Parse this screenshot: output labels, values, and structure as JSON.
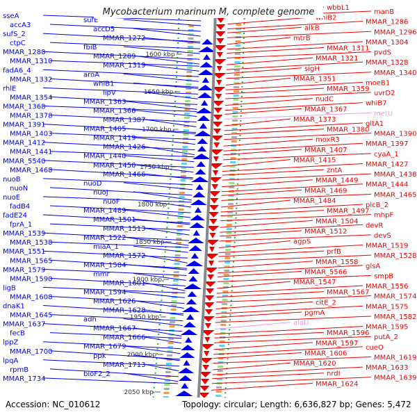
{
  "title": "Mycobacterium marinum M, complete genome",
  "footer": {
    "accession": "Accession: NC_010612",
    "topology": "Topology: circular; Length: 6,636,827 bp; Genes: 5,472"
  },
  "colors": {
    "forward": "#0000ee",
    "reverse": "#ee0000",
    "rna": "#ee99ee",
    "gc": "#22aa22",
    "axis": "#888888"
  },
  "kbp_ticks": [
    {
      "label": "1600 kbp"
    },
    {
      "label": "1650 kbp"
    },
    {
      "label": "1700 kbp"
    },
    {
      "label": "1750 kbp"
    },
    {
      "label": "1800 kbp"
    },
    {
      "label": "1850 kbp"
    },
    {
      "label": "1900 kbp"
    },
    {
      "label": "1950 kbp"
    },
    {
      "label": "2000 kbp"
    },
    {
      "label": "2050 kbp"
    }
  ],
  "left_genes": [
    {
      "label": "sseA"
    },
    {
      "label": "sufE"
    },
    {
      "label": "accA3"
    },
    {
      "label": "accD5"
    },
    {
      "label": "sufS_2"
    },
    {
      "label": "MMAR_1272"
    },
    {
      "label": "ctpC"
    },
    {
      "label": "fbiB"
    },
    {
      "label": "MMAR_1288"
    },
    {
      "label": "MMAR_1289"
    },
    {
      "label": "MMAR_1310"
    },
    {
      "label": "MMAR_1319"
    },
    {
      "label": "fadA6_4"
    },
    {
      "label": "aroA"
    },
    {
      "label": "MMAR_1332"
    },
    {
      "label": "whiB1"
    },
    {
      "label": "rhlE"
    },
    {
      "label": "lipV"
    },
    {
      "label": "MMAR_1354"
    },
    {
      "label": "MMAR_1363"
    },
    {
      "label": "MMAR_1368"
    },
    {
      "label": "MMAR_1366"
    },
    {
      "label": "MMAR_1378"
    },
    {
      "label": "MMAR_1387"
    },
    {
      "label": "MMAR_1391"
    },
    {
      "label": "MMAR_1405"
    },
    {
      "label": "MMAR_1403"
    },
    {
      "label": "MMAR_1419"
    },
    {
      "label": "MMAR_1412"
    },
    {
      "label": "MMAR_1426"
    },
    {
      "label": "MMAR_1441"
    },
    {
      "label": "MMAR_1440"
    },
    {
      "label": "MMAR_5540"
    },
    {
      "label": "MMAR_1450"
    },
    {
      "label": "MMAR_1468"
    },
    {
      "label": "MMAR_1466"
    },
    {
      "label": "nuoB"
    },
    {
      "label": "nuoD"
    },
    {
      "label": "nuoN"
    },
    {
      "label": "nuoJ"
    },
    {
      "label": "nuoE"
    },
    {
      "label": "nuoF"
    },
    {
      "label": "fadB4"
    },
    {
      "label": "MMAR_1489"
    },
    {
      "label": "fadE24"
    },
    {
      "label": "MMAR_1501"
    },
    {
      "label": "fprA_1"
    },
    {
      "label": "MMAR_1513"
    },
    {
      "label": "MMAR_1539"
    },
    {
      "label": "MMAR_1522"
    },
    {
      "label": "MMAR_1538"
    },
    {
      "label": "miaA_1"
    },
    {
      "label": "MMAR_1551"
    },
    {
      "label": "MMAR_1572"
    },
    {
      "label": "MMAR_1565"
    },
    {
      "label": "MMAR_1584"
    },
    {
      "label": "MMAR_1579"
    },
    {
      "label": "mmr"
    },
    {
      "label": "MMAR_1590"
    },
    {
      "label": "MMAR_1601"
    },
    {
      "label": "ligB"
    },
    {
      "label": "MMAR_1594"
    },
    {
      "label": "MMAR_1608"
    },
    {
      "label": "MMAR_1626"
    },
    {
      "label": "dnaK1"
    },
    {
      "label": "MMAR_1628"
    },
    {
      "label": "MMAR_1645"
    },
    {
      "label": "adh"
    },
    {
      "label": "MMAR_1637"
    },
    {
      "label": "MMAR_1667"
    },
    {
      "label": "fecB"
    },
    {
      "label": "MMAR_1666"
    },
    {
      "label": "lppZ"
    },
    {
      "label": "MMAR_1679"
    },
    {
      "label": "MMAR_1700"
    },
    {
      "label": "ppk"
    },
    {
      "label": "lpqA"
    },
    {
      "label": "MMAR_1713"
    },
    {
      "label": "rpmB"
    },
    {
      "label": "bioF2_2"
    },
    {
      "label": "MMAR_1734"
    }
  ],
  "right_genes": [
    {
      "label": "wbbL1"
    },
    {
      "label": "manB"
    },
    {
      "label": "whiB2"
    },
    {
      "label": "MMAR_1286"
    },
    {
      "label": "alkB"
    },
    {
      "label": "MMAR_1296"
    },
    {
      "label": "mtrB"
    },
    {
      "label": "MMAR_1304"
    },
    {
      "label": "MMAR_1311"
    },
    {
      "label": "pvdS"
    },
    {
      "label": "MMAR_1321"
    },
    {
      "label": "MMAR_1328"
    },
    {
      "label": "sigH"
    },
    {
      "label": "MMAR_1340"
    },
    {
      "label": "MMAR_1351"
    },
    {
      "label": "moeB1"
    },
    {
      "label": "MMAR_1359"
    },
    {
      "label": "uvrD2"
    },
    {
      "label": "nudC"
    },
    {
      "label": "whiB7"
    },
    {
      "label": "MMAR_1367"
    },
    {
      "label": "metU"
    },
    {
      "label": "MMAR_1373"
    },
    {
      "label": "gltA1"
    },
    {
      "label": "MMAR_1380"
    },
    {
      "label": "MMAR_1390"
    },
    {
      "label": "moxR3"
    },
    {
      "label": "MMAR_1397"
    },
    {
      "label": "MMAR_1407"
    },
    {
      "label": "cyaA_1"
    },
    {
      "label": "MMAR_1415"
    },
    {
      "label": "MMAR_1427"
    },
    {
      "label": "zntA"
    },
    {
      "label": "MMAR_1438"
    },
    {
      "label": "MMAR_1449"
    },
    {
      "label": "MMAR_1444"
    },
    {
      "label": "MMAR_1469"
    },
    {
      "label": "MMAR_1465"
    },
    {
      "label": "MMAR_1484"
    },
    {
      "label": "plcB_2"
    },
    {
      "label": "MMAR_1497"
    },
    {
      "label": "mhpF"
    },
    {
      "label": "MMAR_1504"
    },
    {
      "label": "devR"
    },
    {
      "label": "MMAR_1512"
    },
    {
      "label": "devS"
    },
    {
      "label": "agpS"
    },
    {
      "label": "MMAR_1519"
    },
    {
      "label": "prfB"
    },
    {
      "label": "MMAR_1528"
    },
    {
      "label": "MMAR_1558"
    },
    {
      "label": "glsA"
    },
    {
      "label": "MMAR_5566"
    },
    {
      "label": "smpB"
    },
    {
      "label": "MMAR_1547"
    },
    {
      "label": "MMAR_1556"
    },
    {
      "label": "MMAR_1567"
    },
    {
      "label": "MMAR_1574"
    },
    {
      "label": "citE_2"
    },
    {
      "label": "MMAR_1575"
    },
    {
      "label": "pgmA"
    },
    {
      "label": "MMAR_1582"
    },
    {
      "label": "alaU"
    },
    {
      "label": "MMAR_1595"
    },
    {
      "label": "MMAR_1596"
    },
    {
      "label": "putA_2"
    },
    {
      "label": "MMAR_1597"
    },
    {
      "label": "cueO"
    },
    {
      "label": "MMAR_1606"
    },
    {
      "label": "MMAR_1619"
    },
    {
      "label": "MMAR_1620"
    },
    {
      "label": "MMAR_1633"
    },
    {
      "label": "nrdI"
    },
    {
      "label": "MMAR_1639"
    },
    {
      "label": "MMAR_1624"
    }
  ]
}
